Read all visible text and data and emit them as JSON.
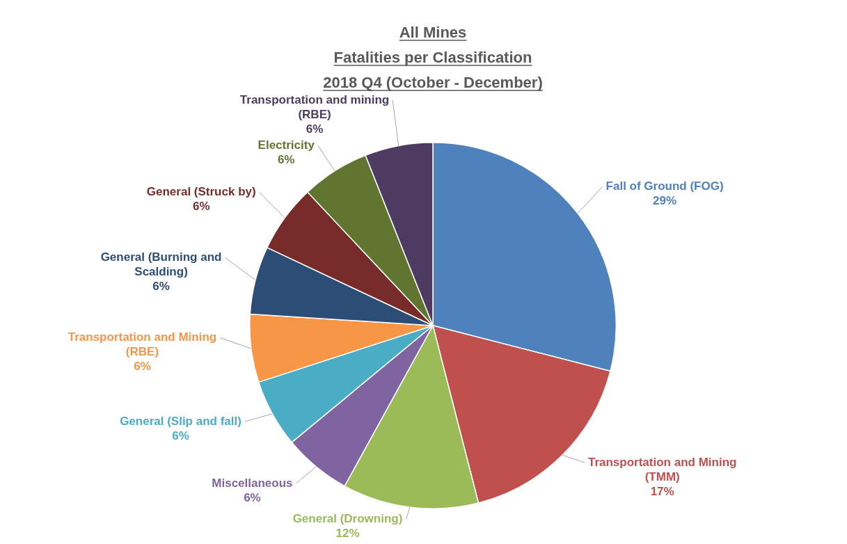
{
  "chart_data": {
    "type": "pie",
    "title": "All Mines\nFatalities per Classification\n2018 Q4 (October - December)",
    "categories": [
      "Fall of Ground (FOG)",
      "Transportation and Mining (TMM)",
      "General (Drowning)",
      "Miscellaneous",
      "General (Slip and fall)",
      "Transportation and Mining (RBE)",
      "General (Burning and Scalding)",
      "General (Struck by)",
      "Electricity",
      "Transportation and mining (RBE)"
    ],
    "values": [
      29,
      17,
      12,
      6,
      6,
      6,
      6,
      6,
      6,
      6
    ],
    "value_labels": [
      "29%",
      "17%",
      "12%",
      "6%",
      "6%",
      "6%",
      "6%",
      "6%",
      "6%",
      "6%"
    ],
    "colors": [
      "#4f81bd",
      "#c0504d",
      "#9bbb59",
      "#8064a2",
      "#4bacc6",
      "#f79646",
      "#2c4d75",
      "#772c2a",
      "#5f7530",
      "#4d3b62"
    ]
  }
}
